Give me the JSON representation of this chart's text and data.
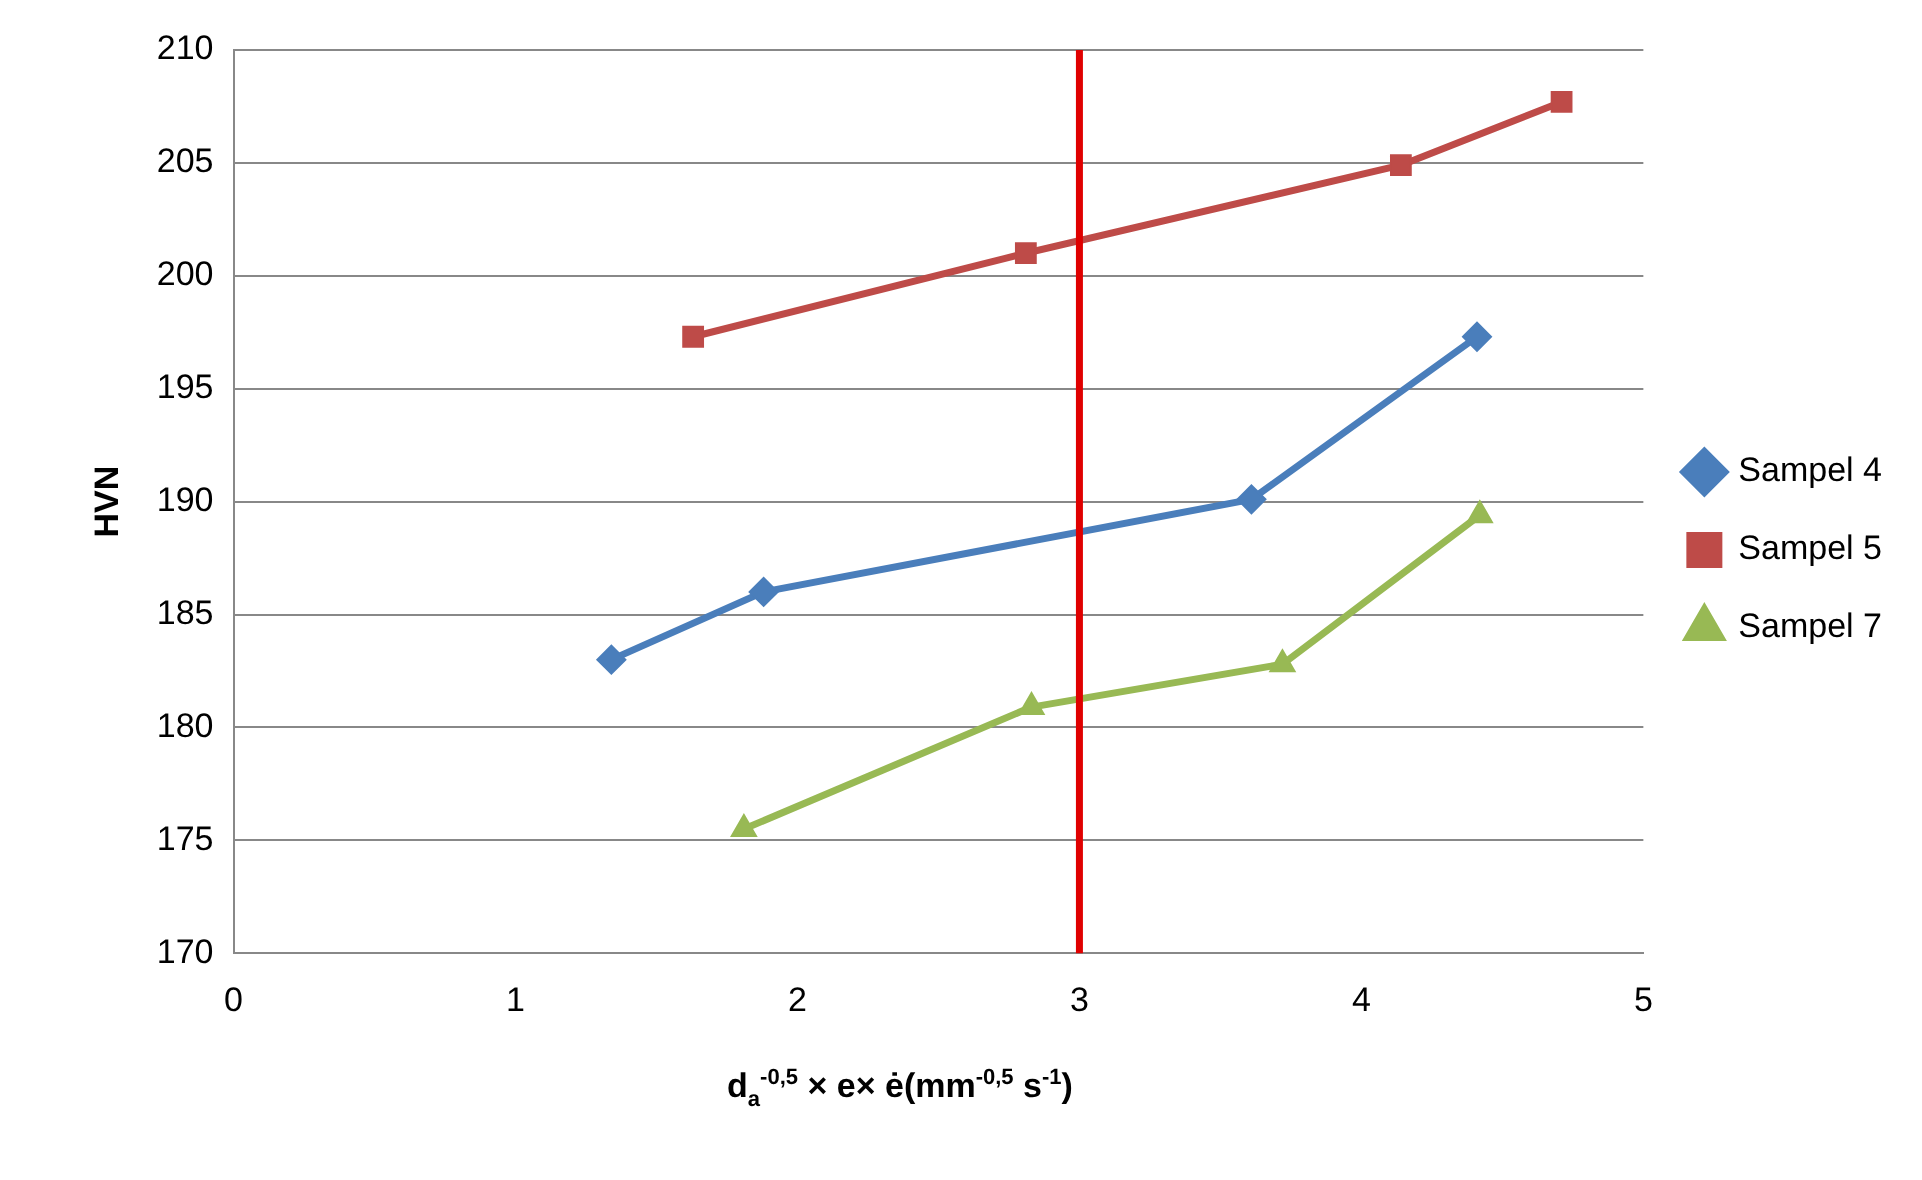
{
  "chart_data": {
    "type": "line",
    "xlabel": "d$_{a}$$^{-0,5}$ × e× ė(mm$^{-0,5}$ s$^{-1}$)",
    "ylabel": "HVN",
    "xlim": [
      0,
      5
    ],
    "xticks": [
      0,
      1,
      2,
      3,
      4,
      5
    ],
    "ylim": [
      170,
      210
    ],
    "yticks": [
      170,
      175,
      180,
      185,
      190,
      195,
      200,
      205,
      210
    ],
    "grid": "y",
    "legend": "right",
    "line_style": "solid",
    "series": [
      {
        "name": "Sampel 4",
        "color": "#4a7ebb",
        "marker": "diamond",
        "x": [
          1.34,
          1.88,
          3.61,
          4.41
        ],
        "values": [
          183.0,
          186.0,
          190.1,
          197.3
        ]
      },
      {
        "name": "Sampel 5",
        "color": "#be4b48",
        "marker": "square",
        "x": [
          1.63,
          2.81,
          4.14,
          4.71
        ],
        "values": [
          197.3,
          201.0,
          204.9,
          207.7
        ]
      },
      {
        "name": "Sampel 7",
        "color": "#98b954",
        "marker": "triangle",
        "x": [
          1.81,
          2.83,
          3.72,
          4.42
        ],
        "values": [
          175.5,
          180.9,
          182.8,
          189.4
        ]
      }
    ],
    "ref_lines": [
      {
        "axis": "x",
        "value": 3,
        "color": "#e00000"
      }
    ]
  }
}
